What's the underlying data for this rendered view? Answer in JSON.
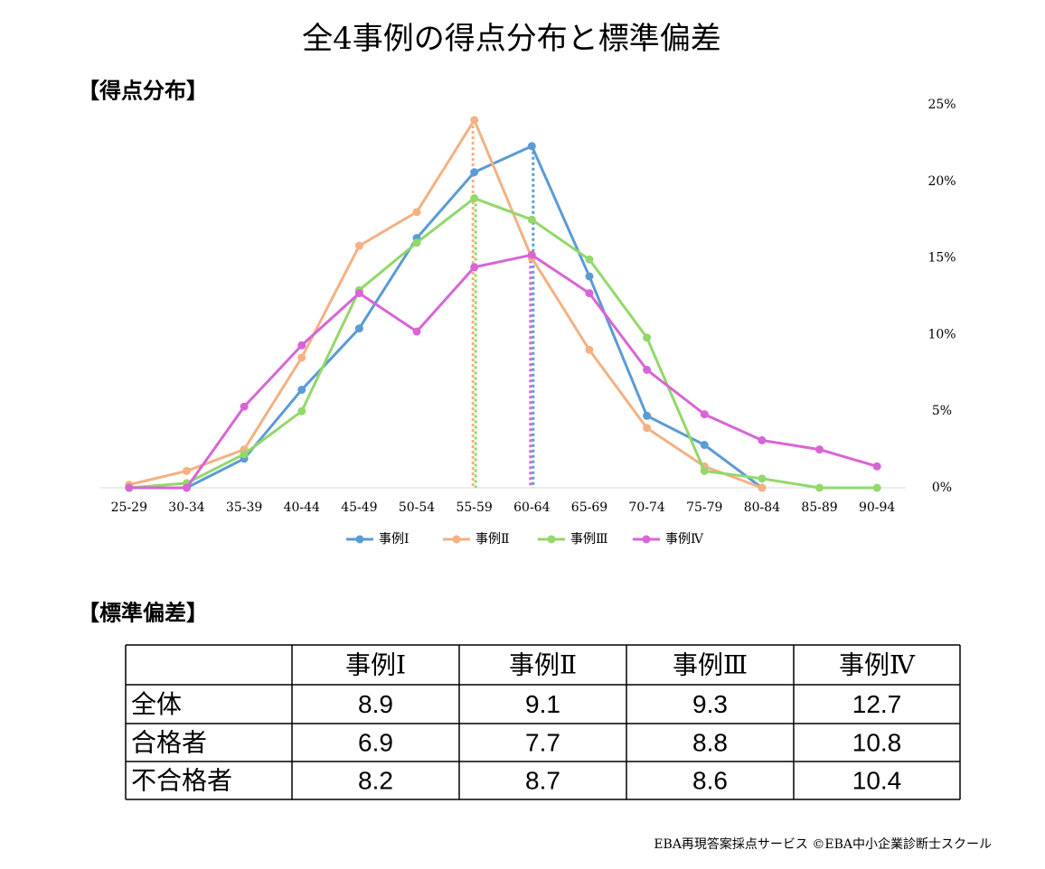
{
  "title": "全4事例の得点分布と標準偏差",
  "chart_section_title": "【得点分布】",
  "chart_data": {
    "type": "line",
    "categories": [
      "25-29",
      "30-34",
      "35-39",
      "40-44",
      "45-49",
      "50-54",
      "55-59",
      "60-64",
      "65-69",
      "70-74",
      "75-79",
      "80-84",
      "85-89",
      "90-94"
    ],
    "series": [
      {
        "name": "事例Ⅰ",
        "color": "#5b9bd5",
        "values": [
          0,
          0,
          1.9,
          6.4,
          10.4,
          16.3,
          20.6,
          22.3,
          13.8,
          4.7,
          2.8,
          0,
          null,
          null
        ]
      },
      {
        "name": "事例Ⅱ",
        "color": "#f4b183",
        "values": [
          0.2,
          1.1,
          2.5,
          8.5,
          15.8,
          18.0,
          24.0,
          15.0,
          9.0,
          3.9,
          1.4,
          0,
          null,
          null
        ]
      },
      {
        "name": "事例Ⅲ",
        "color": "#92d86a",
        "values": [
          0,
          0.3,
          2.2,
          5.0,
          12.9,
          16.0,
          18.9,
          17.5,
          14.9,
          9.8,
          1.1,
          0.6,
          0,
          0
        ]
      },
      {
        "name": "事例Ⅳ",
        "color": "#d865d6",
        "values": [
          0,
          0,
          5.3,
          9.3,
          12.7,
          10.2,
          14.4,
          15.2,
          12.7,
          7.7,
          4.8,
          3.1,
          2.5,
          1.4
        ]
      }
    ],
    "ylim": [
      0,
      25
    ],
    "yticks": [
      {
        "value": 0,
        "label": "0%"
      },
      {
        "value": 5,
        "label": "5%"
      },
      {
        "value": 10,
        "label": "10%"
      },
      {
        "value": 15,
        "label": "15%"
      },
      {
        "value": 20,
        "label": "20%"
      },
      {
        "value": 25,
        "label": "25%"
      }
    ],
    "y_axis_side": "right",
    "grid": false,
    "legend": "bottom",
    "peak_markers": true
  },
  "table_section_title": "【標準偏差】",
  "table": {
    "columns": [
      "事例Ⅰ",
      "事例Ⅱ",
      "事例Ⅲ",
      "事例Ⅳ"
    ],
    "rows": [
      {
        "label": "全体",
        "values": [
          8.9,
          9.1,
          9.3,
          12.7
        ]
      },
      {
        "label": "合格者",
        "values": [
          6.9,
          7.7,
          8.8,
          10.8
        ]
      },
      {
        "label": "不合格者",
        "values": [
          8.2,
          8.7,
          8.6,
          10.4
        ]
      }
    ]
  },
  "footer": "EBA再現答案採点サービス ©EBA中小企業診断士スクール"
}
